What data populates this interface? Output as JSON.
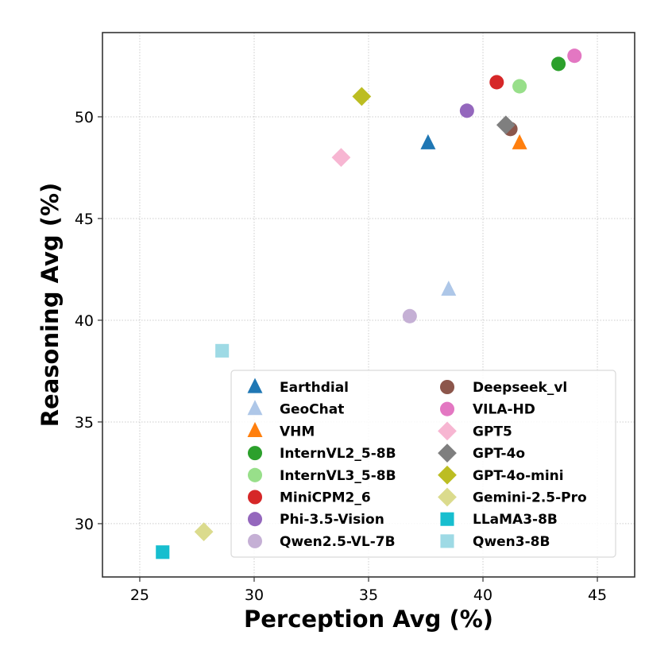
{
  "chart_data": {
    "type": "scatter",
    "title": "",
    "xlabel": "Perception Avg (%)",
    "ylabel": "Reasoning Avg (%)",
    "xlim": [
      23.37,
      46.63
    ],
    "ylim": [
      27.38,
      54.14
    ],
    "xticks": [
      25,
      30,
      35,
      40,
      45
    ],
    "yticks": [
      30,
      35,
      40,
      45,
      50
    ],
    "grid": true,
    "legend_position": "lower-right",
    "legend_columns": 2,
    "series": [
      {
        "name": "Earthdial",
        "marker": "triangle",
        "color": "#1f77b4",
        "x": 37.6,
        "y": 48.7
      },
      {
        "name": "GeoChat",
        "marker": "triangle",
        "color": "#aec7e8",
        "x": 38.5,
        "y": 41.5
      },
      {
        "name": "VHM",
        "marker": "triangle",
        "color": "#ff7f0e",
        "x": 41.6,
        "y": 48.7
      },
      {
        "name": "InternVL2_5-8B",
        "marker": "circle",
        "color": "#2ca02c",
        "x": 43.3,
        "y": 52.6
      },
      {
        "name": "InternVL3_5-8B",
        "marker": "circle",
        "color": "#98df8a",
        "x": 41.6,
        "y": 51.5
      },
      {
        "name": "MiniCPM2_6",
        "marker": "circle",
        "color": "#d62728",
        "x": 40.6,
        "y": 51.7
      },
      {
        "name": "Phi-3.5-Vision",
        "marker": "circle",
        "color": "#9467bd",
        "x": 39.3,
        "y": 50.3
      },
      {
        "name": "Qwen2.5-VL-7B",
        "marker": "circle",
        "color": "#c5b0d5",
        "x": 36.8,
        "y": 40.2
      },
      {
        "name": "Deepseek_vl",
        "marker": "circle",
        "color": "#8c564b",
        "x": 41.2,
        "y": 49.4
      },
      {
        "name": "VILA-HD",
        "marker": "circle",
        "color": "#e377c2",
        "x": 44.0,
        "y": 53.0
      },
      {
        "name": "GPT5",
        "marker": "diamond",
        "color": "#f7b6d2",
        "x": 33.8,
        "y": 48.0
      },
      {
        "name": "GPT-4o",
        "marker": "diamond",
        "color": "#7f7f7f",
        "x": 41.0,
        "y": 49.6
      },
      {
        "name": "GPT-4o-mini",
        "marker": "diamond",
        "color": "#bcbd22",
        "x": 34.7,
        "y": 51.0
      },
      {
        "name": "Gemini-2.5-Pro",
        "marker": "diamond",
        "color": "#dbdb8d",
        "x": 27.8,
        "y": 29.6
      },
      {
        "name": "LLaMA3-8B",
        "marker": "square",
        "color": "#17becf",
        "x": 26.0,
        "y": 28.6
      },
      {
        "name": "Qwen3-8B",
        "marker": "square",
        "color": "#9edae5",
        "x": 28.6,
        "y": 38.5
      }
    ]
  }
}
